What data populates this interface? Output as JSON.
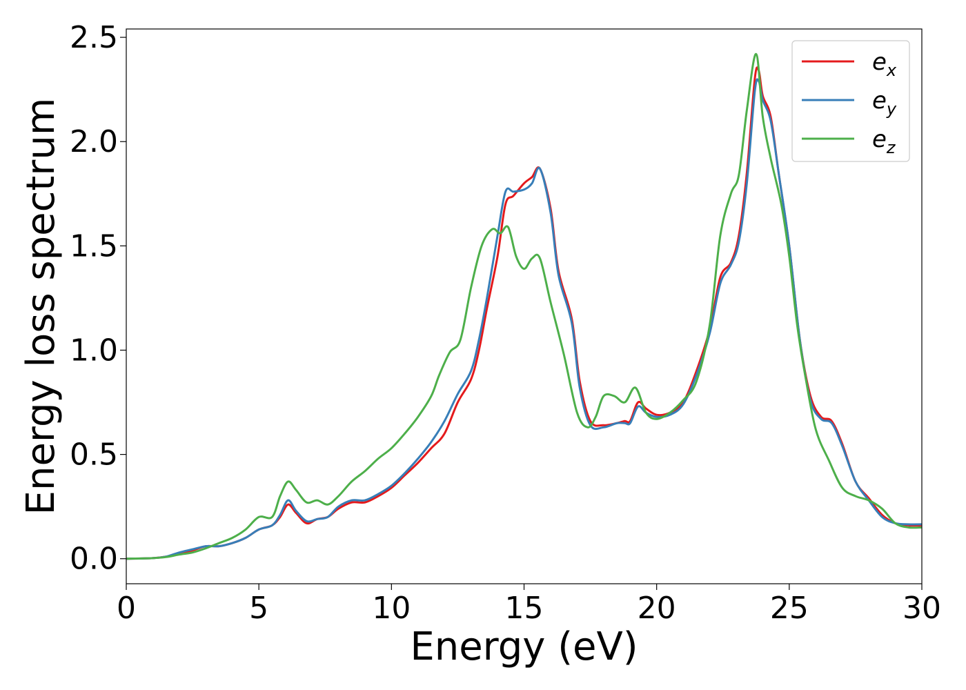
{
  "chart_data": {
    "type": "line",
    "title": "",
    "xlabel": "Energy (eV)",
    "ylabel": "Energy loss spectrum",
    "xlim": [
      0,
      30
    ],
    "ylim": [
      -0.12,
      2.54
    ],
    "xticks": [
      "0",
      "5",
      "10",
      "15",
      "20",
      "25",
      "30"
    ],
    "yticks": [
      "0.0",
      "0.5",
      "1.0",
      "1.5",
      "2.0",
      "2.5"
    ],
    "grid": false,
    "legend_position": "top-right",
    "series": [
      {
        "name": "e_x",
        "label_main": "e",
        "label_sub": "x",
        "color": "#e41a1c",
        "x": [
          0,
          1,
          1.5,
          2,
          2.5,
          3,
          3.5,
          4,
          4.5,
          5,
          5.5,
          5.8,
          6.1,
          6.4,
          6.8,
          7.2,
          7.6,
          8,
          8.5,
          9,
          9.5,
          10,
          10.5,
          11,
          11.5,
          12,
          12.5,
          13,
          13.3,
          13.6,
          14,
          14.3,
          14.6,
          15,
          15.3,
          15.6,
          16,
          16.3,
          16.8,
          17.1,
          17.5,
          18,
          18.5,
          18.8,
          19,
          19.3,
          19.6,
          20,
          20.5,
          21,
          21.5,
          22,
          22.4,
          22.8,
          23.1,
          23.4,
          23.7,
          23.85,
          24,
          24.3,
          24.6,
          25,
          25.4,
          25.8,
          26.2,
          26.6,
          27,
          27.5,
          28,
          28.5,
          29,
          29.5,
          30
        ],
        "y": [
          0,
          0.003,
          0.01,
          0.025,
          0.04,
          0.06,
          0.06,
          0.075,
          0.1,
          0.14,
          0.16,
          0.2,
          0.26,
          0.22,
          0.17,
          0.19,
          0.2,
          0.24,
          0.27,
          0.27,
          0.3,
          0.34,
          0.4,
          0.46,
          0.53,
          0.6,
          0.75,
          0.86,
          1.0,
          1.2,
          1.45,
          1.7,
          1.74,
          1.8,
          1.83,
          1.87,
          1.68,
          1.38,
          1.15,
          0.85,
          0.66,
          0.64,
          0.65,
          0.66,
          0.66,
          0.75,
          0.72,
          0.69,
          0.7,
          0.75,
          0.9,
          1.1,
          1.35,
          1.42,
          1.55,
          1.85,
          2.3,
          2.34,
          2.22,
          2.12,
          1.85,
          1.5,
          1.05,
          0.78,
          0.68,
          0.66,
          0.55,
          0.37,
          0.29,
          0.21,
          0.17,
          0.16,
          0.16
        ]
      },
      {
        "name": "e_y",
        "label_main": "e",
        "label_sub": "y",
        "color": "#377eb8",
        "x": [
          0,
          1,
          1.5,
          2,
          2.5,
          3,
          3.5,
          4,
          4.5,
          5,
          5.5,
          5.8,
          6.1,
          6.4,
          6.8,
          7.2,
          7.6,
          8,
          8.5,
          9,
          9.5,
          10,
          10.5,
          11,
          11.5,
          12,
          12.5,
          13,
          13.3,
          13.6,
          14,
          14.3,
          14.6,
          15,
          15.3,
          15.6,
          16,
          16.3,
          16.8,
          17.1,
          17.5,
          18,
          18.5,
          18.8,
          19,
          19.3,
          19.6,
          20,
          20.5,
          21,
          21.5,
          22,
          22.4,
          22.8,
          23.1,
          23.4,
          23.7,
          23.85,
          24,
          24.3,
          24.6,
          25,
          25.4,
          25.8,
          26.2,
          26.6,
          27,
          27.5,
          28,
          28.5,
          29,
          29.5,
          30
        ],
        "y": [
          0,
          0.003,
          0.01,
          0.03,
          0.045,
          0.06,
          0.06,
          0.075,
          0.1,
          0.14,
          0.16,
          0.21,
          0.28,
          0.23,
          0.18,
          0.19,
          0.2,
          0.25,
          0.28,
          0.28,
          0.31,
          0.35,
          0.41,
          0.48,
          0.56,
          0.66,
          0.79,
          0.9,
          1.05,
          1.25,
          1.55,
          1.76,
          1.76,
          1.77,
          1.8,
          1.87,
          1.66,
          1.36,
          1.13,
          0.82,
          0.64,
          0.63,
          0.65,
          0.65,
          0.65,
          0.73,
          0.7,
          0.68,
          0.69,
          0.74,
          0.88,
          1.08,
          1.32,
          1.41,
          1.52,
          1.8,
          2.24,
          2.29,
          2.2,
          2.1,
          1.85,
          1.5,
          1.05,
          0.76,
          0.67,
          0.65,
          0.54,
          0.37,
          0.28,
          0.2,
          0.17,
          0.165,
          0.165
        ]
      },
      {
        "name": "e_z",
        "label_main": "e",
        "label_sub": "z",
        "color": "#4daf4a",
        "x": [
          0,
          1,
          1.5,
          2,
          2.5,
          3,
          3.5,
          4,
          4.5,
          5,
          5.5,
          5.8,
          6.1,
          6.4,
          6.8,
          7.2,
          7.6,
          8,
          8.5,
          9,
          9.5,
          10,
          10.5,
          11,
          11.5,
          11.8,
          12.2,
          12.6,
          13,
          13.4,
          13.8,
          14.1,
          14.4,
          14.7,
          15,
          15.3,
          15.6,
          16,
          16.5,
          17,
          17.4,
          17.7,
          18,
          18.4,
          18.8,
          19.2,
          19.6,
          20,
          20.5,
          21,
          21.5,
          22,
          22.4,
          22.8,
          23.1,
          23.4,
          23.75,
          24,
          24.3,
          24.7,
          25,
          25.3,
          25.6,
          26,
          26.5,
          27,
          27.5,
          28,
          28.5,
          29,
          29.5,
          30
        ],
        "y": [
          0,
          0.003,
          0.008,
          0.02,
          0.03,
          0.05,
          0.075,
          0.1,
          0.14,
          0.2,
          0.2,
          0.3,
          0.37,
          0.33,
          0.27,
          0.28,
          0.26,
          0.3,
          0.37,
          0.42,
          0.48,
          0.53,
          0.6,
          0.68,
          0.78,
          0.88,
          0.99,
          1.05,
          1.3,
          1.5,
          1.58,
          1.56,
          1.59,
          1.45,
          1.39,
          1.44,
          1.44,
          1.23,
          0.98,
          0.7,
          0.63,
          0.68,
          0.78,
          0.78,
          0.75,
          0.82,
          0.7,
          0.67,
          0.7,
          0.76,
          0.85,
          1.12,
          1.55,
          1.75,
          1.84,
          2.15,
          2.42,
          2.12,
          1.92,
          1.7,
          1.45,
          1.12,
          0.88,
          0.62,
          0.47,
          0.34,
          0.3,
          0.28,
          0.24,
          0.17,
          0.15,
          0.15
        ]
      }
    ]
  }
}
